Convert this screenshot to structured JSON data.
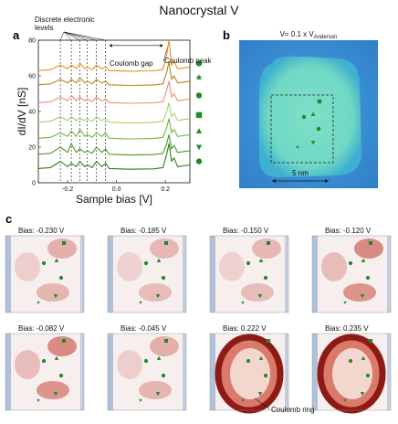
{
  "figure": {
    "title": "Nanocrystal V",
    "panel_a": "a",
    "panel_b": "b",
    "panel_c": "c"
  },
  "colors": {
    "stm_bg": "#3a8fd6",
    "stm_island": "#7fe0c8",
    "marker_green": "#1f8a2a",
    "map_red": "#c0392b",
    "map_blue": "#2f6db0"
  },
  "annotations": {
    "discrete_levels": "Discrete electronic levels",
    "coulomb_gap": "Coulomb gap",
    "coulomb_peak": "Coulomb peak",
    "coulomb_ring": "Coulomb ring"
  },
  "stm_image": {
    "label": "V= 0.1 x V",
    "label_sub": "Anderson",
    "scalebar": "5 nm"
  },
  "chart_data": [
    {
      "type": "line",
      "xlabel": "Sample bias [V]",
      "ylabel": "dI/dV [nS]",
      "xlim": [
        -0.32,
        0.3
      ],
      "ylim": [
        0,
        80
      ],
      "xticks": [
        -0.2,
        0.0,
        0.2
      ],
      "xtick_labels": [
        "-0.2",
        "0.0",
        "0.2"
      ],
      "yticks": [
        0,
        20,
        40,
        60,
        80
      ],
      "ytick_labels": [
        "0",
        "20",
        "40",
        "60",
        "80"
      ],
      "discrete_level_positions": [
        -0.23,
        -0.185,
        -0.15,
        -0.12,
        -0.082,
        -0.045
      ],
      "coulomb_gap_range": [
        -0.03,
        0.19
      ],
      "series": [
        {
          "marker": "circle",
          "color": "#2e7d1a",
          "offset": 8,
          "x": [
            -0.32,
            -0.27,
            -0.23,
            -0.2,
            -0.185,
            -0.165,
            -0.15,
            -0.13,
            -0.12,
            -0.1,
            -0.082,
            -0.06,
            -0.045,
            -0.03,
            0.05,
            0.15,
            0.19,
            0.205,
            0.215,
            0.225,
            0.235,
            0.25,
            0.3
          ],
          "y": [
            8,
            8.5,
            12,
            9,
            11,
            9,
            12,
            9,
            10,
            8.5,
            12,
            9,
            11,
            8,
            7.6,
            7.8,
            8.5,
            16,
            22,
            12,
            14,
            9,
            10
          ]
        },
        {
          "marker": "triangle-down",
          "color": "#4e9a2a",
          "offset": 16,
          "x": [
            -0.32,
            -0.27,
            -0.23,
            -0.2,
            -0.185,
            -0.165,
            -0.15,
            -0.13,
            -0.12,
            -0.1,
            -0.082,
            -0.06,
            -0.045,
            -0.03,
            0.05,
            0.15,
            0.19,
            0.205,
            0.215,
            0.225,
            0.235,
            0.25,
            0.3
          ],
          "y": [
            16,
            16.5,
            20,
            17,
            22,
            17,
            19,
            17,
            18,
            16.5,
            20,
            17,
            19,
            16,
            15.6,
            15.8,
            16.5,
            22,
            27,
            19,
            21,
            17,
            18
          ]
        },
        {
          "marker": "triangle-up",
          "color": "#6fb43a",
          "offset": 25,
          "x": [
            -0.32,
            -0.27,
            -0.23,
            -0.2,
            -0.185,
            -0.165,
            -0.15,
            -0.13,
            -0.12,
            -0.1,
            -0.082,
            -0.06,
            -0.045,
            -0.03,
            0.05,
            0.15,
            0.19,
            0.205,
            0.215,
            0.225,
            0.235,
            0.25,
            0.3
          ],
          "y": [
            25,
            25.5,
            28,
            26,
            29,
            26,
            30,
            26,
            27,
            25.5,
            28,
            26,
            28,
            25,
            24.6,
            24.8,
            25.5,
            31,
            36,
            28,
            30,
            26,
            27
          ]
        },
        {
          "marker": "square",
          "color": "#9fd46a",
          "offset": 34,
          "x": [
            -0.32,
            -0.27,
            -0.23,
            -0.2,
            -0.185,
            -0.165,
            -0.15,
            -0.13,
            -0.12,
            -0.1,
            -0.082,
            -0.06,
            -0.045,
            -0.03,
            0.05,
            0.15,
            0.19,
            0.205,
            0.215,
            0.225,
            0.235,
            0.25,
            0.3
          ],
          "y": [
            34,
            34.5,
            37,
            35,
            37,
            35,
            36,
            35,
            36,
            34.5,
            37,
            35,
            36,
            34,
            33.6,
            33.8,
            34.5,
            40,
            45,
            37,
            39,
            35,
            36
          ]
        },
        {
          "marker": "circle",
          "color": "#f08c7c",
          "offset": 45,
          "x": [
            -0.32,
            -0.27,
            -0.23,
            -0.2,
            -0.185,
            -0.165,
            -0.15,
            -0.13,
            -0.12,
            -0.1,
            -0.082,
            -0.06,
            -0.045,
            -0.03,
            0.05,
            0.15,
            0.19,
            0.205,
            0.215,
            0.225,
            0.235,
            0.25,
            0.3
          ],
          "y": [
            45,
            45.5,
            48,
            46,
            49,
            46,
            48,
            46,
            47,
            45.5,
            48,
            46,
            47,
            45,
            44.6,
            44.8,
            45.5,
            52,
            57,
            48,
            50,
            46,
            47
          ]
        },
        {
          "marker": "star",
          "color": "#b5891e",
          "offset": 55,
          "x": [
            -0.32,
            -0.27,
            -0.23,
            -0.2,
            -0.185,
            -0.165,
            -0.15,
            -0.13,
            -0.12,
            -0.1,
            -0.082,
            -0.06,
            -0.045,
            -0.03,
            0.05,
            0.15,
            0.19,
            0.205,
            0.215,
            0.225,
            0.235,
            0.25,
            0.3
          ],
          "y": [
            55,
            55.5,
            58,
            56,
            58,
            56,
            59,
            56,
            57,
            55.5,
            58,
            56,
            57,
            55,
            54.6,
            54.8,
            55.5,
            62,
            68,
            58,
            60,
            56,
            57
          ]
        },
        {
          "marker": "circle",
          "color": "#f28a1a",
          "offset": 63,
          "x": [
            -0.32,
            -0.27,
            -0.23,
            -0.2,
            -0.185,
            -0.165,
            -0.15,
            -0.13,
            -0.12,
            -0.1,
            -0.082,
            -0.06,
            -0.045,
            -0.03,
            0.05,
            0.15,
            0.19,
            0.205,
            0.215,
            0.225,
            0.235,
            0.25,
            0.3
          ],
          "y": [
            63,
            63.5,
            66,
            64,
            66,
            64,
            67,
            64,
            65,
            63.5,
            66,
            64,
            65,
            63,
            62.6,
            62.8,
            63.5,
            72,
            80,
            66,
            68,
            64,
            65
          ]
        }
      ]
    },
    {
      "type": "heatmap",
      "maps": [
        {
          "bias_label": "Bias: -0.230 V",
          "bias": -0.23,
          "intensity": 0.35
        },
        {
          "bias_label": "Bias: -0.185 V",
          "bias": -0.185,
          "intensity": 0.3
        },
        {
          "bias_label": "Bias: -0.150 V",
          "bias": -0.15,
          "intensity": 0.3
        },
        {
          "bias_label": "Bias: -0.120 V",
          "bias": -0.12,
          "intensity": 0.55
        },
        {
          "bias_label": "Bias: -0.082 V",
          "bias": -0.082,
          "intensity": 0.55
        },
        {
          "bias_label": "Bias: -0.045 V",
          "bias": -0.045,
          "intensity": 0.35
        },
        {
          "bias_label": "Bias: 0.222 V",
          "bias": 0.222,
          "intensity": 0.95
        },
        {
          "bias_label": "Bias: 0.235 V",
          "bias": 0.235,
          "intensity": 0.9
        }
      ]
    }
  ]
}
